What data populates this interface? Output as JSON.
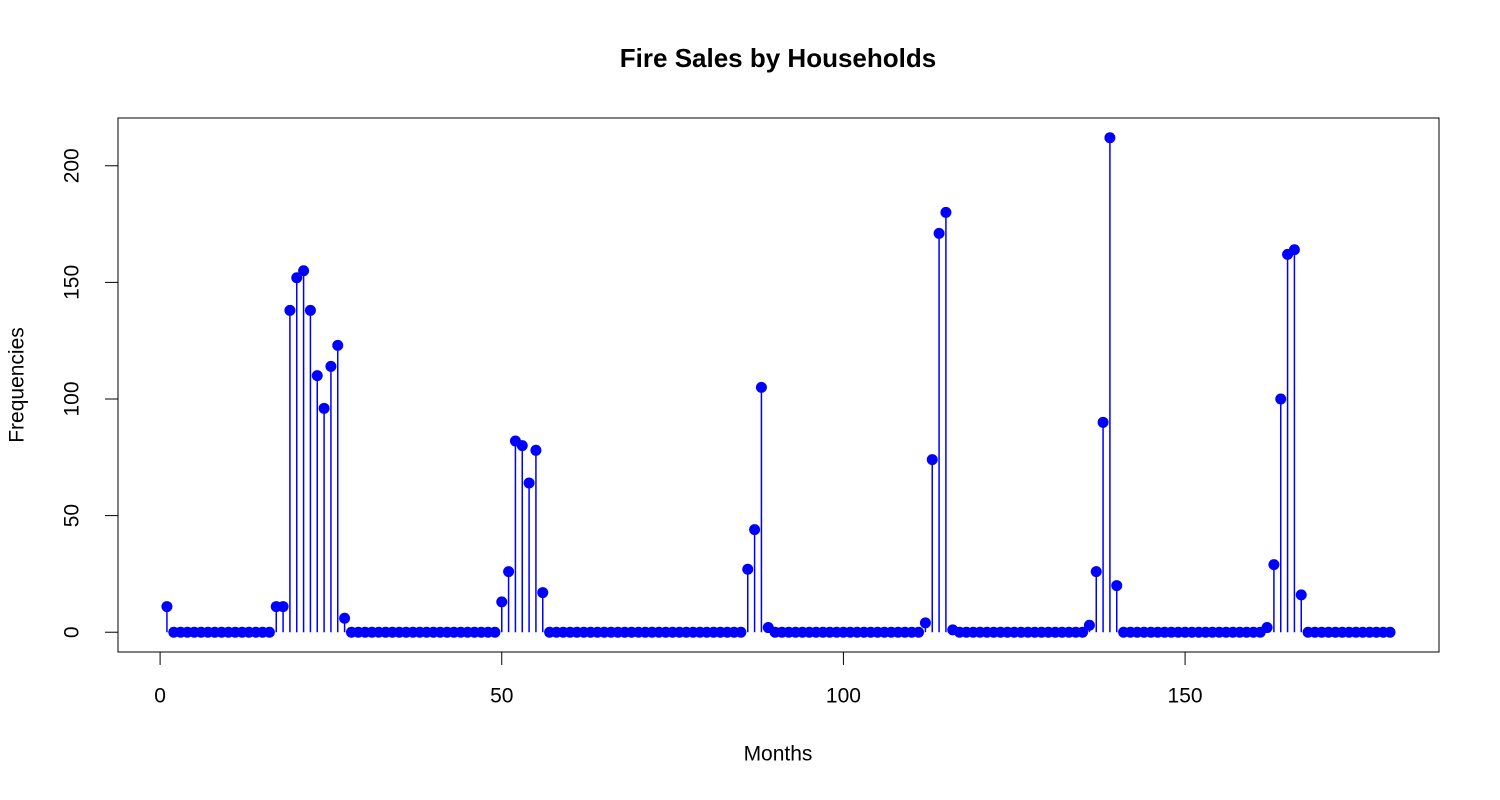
{
  "chart_data": {
    "type": "stem",
    "title": "Fire Sales by Households",
    "x_label": "Months",
    "y_label": "Frequencies",
    "color": "#0000ff",
    "x": [
      1,
      2,
      3,
      4,
      5,
      6,
      7,
      8,
      9,
      10,
      11,
      12,
      13,
      14,
      15,
      16,
      17,
      18,
      19,
      20,
      21,
      22,
      23,
      24,
      25,
      26,
      27,
      28,
      29,
      30,
      31,
      32,
      33,
      34,
      35,
      36,
      37,
      38,
      39,
      40,
      41,
      42,
      43,
      44,
      45,
      46,
      47,
      48,
      49,
      50,
      51,
      52,
      53,
      54,
      55,
      56,
      57,
      58,
      59,
      60,
      61,
      62,
      63,
      64,
      65,
      66,
      67,
      68,
      69,
      70,
      71,
      72,
      73,
      74,
      75,
      76,
      77,
      78,
      79,
      80,
      81,
      82,
      83,
      84,
      85,
      86,
      87,
      88,
      89,
      90,
      91,
      92,
      93,
      94,
      95,
      96,
      97,
      98,
      99,
      100,
      101,
      102,
      103,
      104,
      105,
      106,
      107,
      108,
      109,
      110,
      111,
      112,
      113,
      114,
      115,
      116,
      117,
      118,
      119,
      120,
      121,
      122,
      123,
      124,
      125,
      126,
      127,
      128,
      129,
      130,
      131,
      132,
      133,
      134,
      135,
      136,
      137,
      138,
      139,
      140,
      141,
      142,
      143,
      144,
      145,
      146,
      147,
      148,
      149,
      150,
      151,
      152,
      153,
      154,
      155,
      156,
      157,
      158,
      159,
      160,
      161,
      162,
      163,
      164,
      165,
      166,
      167,
      168,
      169,
      170,
      171,
      172,
      173,
      174,
      175,
      176,
      177,
      178,
      179,
      180
    ],
    "values": [
      11,
      0,
      0,
      0,
      0,
      0,
      0,
      0,
      0,
      0,
      0,
      0,
      0,
      0,
      0,
      0,
      11,
      11,
      138,
      152,
      155,
      138,
      110,
      96,
      114,
      123,
      6,
      0,
      0,
      0,
      0,
      0,
      0,
      0,
      0,
      0,
      0,
      0,
      0,
      0,
      0,
      0,
      0,
      0,
      0,
      0,
      0,
      0,
      0,
      13,
      26,
      82,
      80,
      64,
      78,
      17,
      0,
      0,
      0,
      0,
      0,
      0,
      0,
      0,
      0,
      0,
      0,
      0,
      0,
      0,
      0,
      0,
      0,
      0,
      0,
      0,
      0,
      0,
      0,
      0,
      0,
      0,
      0,
      0,
      0,
      27,
      44,
      105,
      2,
      0,
      0,
      0,
      0,
      0,
      0,
      0,
      0,
      0,
      0,
      0,
      0,
      0,
      0,
      0,
      0,
      0,
      0,
      0,
      0,
      0,
      0,
      4,
      74,
      171,
      180,
      1,
      0,
      0,
      0,
      0,
      0,
      0,
      0,
      0,
      0,
      0,
      0,
      0,
      0,
      0,
      0,
      0,
      0,
      0,
      0,
      3,
      26,
      90,
      212,
      20,
      0,
      0,
      0,
      0,
      0,
      0,
      0,
      0,
      0,
      0,
      0,
      0,
      0,
      0,
      0,
      0,
      0,
      0,
      0,
      0,
      0,
      2,
      29,
      100,
      162,
      164,
      16,
      0,
      0,
      0,
      0,
      0,
      0,
      0,
      0,
      0,
      0,
      0,
      0,
      0
    ],
    "xlim": [
      -6.16,
      187.16
    ],
    "ylim": [
      -8.48,
      220.48
    ],
    "xticks": [
      0,
      50,
      100,
      150
    ],
    "yticks": [
      0,
      50,
      100,
      150,
      200
    ]
  }
}
